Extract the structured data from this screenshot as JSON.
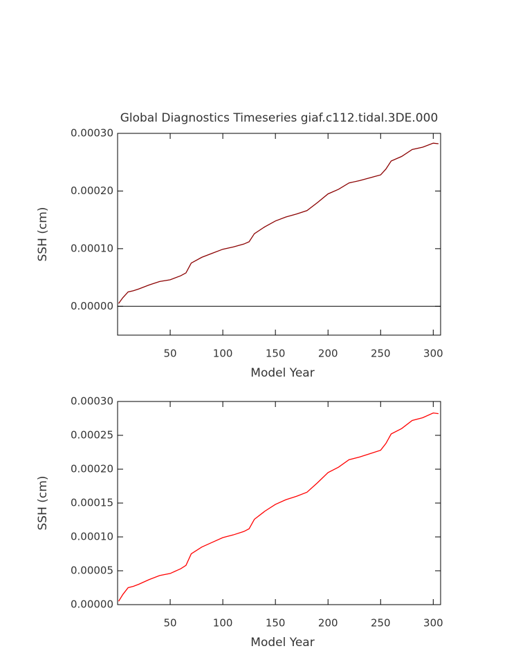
{
  "chart_data": [
    {
      "type": "line",
      "title": "Global Diagnostics Timeseries giaf.c112.tidal.3DE.000",
      "x_label": "Model Year",
      "y_label": "SSH (cm)",
      "x": [
        1,
        5,
        10,
        15,
        20,
        30,
        40,
        50,
        60,
        65,
        70,
        80,
        90,
        100,
        110,
        120,
        125,
        130,
        140,
        150,
        160,
        170,
        180,
        190,
        200,
        210,
        220,
        230,
        240,
        250,
        255,
        260,
        270,
        280,
        290,
        300,
        305
      ],
      "values": [
        5e-06,
        1.5e-05,
        2.5e-05,
        2.7e-05,
        3e-05,
        3.7e-05,
        4.3e-05,
        4.6e-05,
        5.3e-05,
        5.8e-05,
        7.5e-05,
        8.5e-05,
        9.2e-05,
        9.9e-05,
        0.000103,
        0.000108,
        0.000112,
        0.000126,
        0.000138,
        0.000148,
        0.000155,
        0.00016,
        0.000166,
        0.00018,
        0.000195,
        0.000203,
        0.000214,
        0.000218,
        0.000223,
        0.000228,
        0.000238,
        0.000252,
        0.00026,
        0.000272,
        0.000276,
        0.000283,
        0.000282
      ],
      "color": "#8b0000",
      "xlim": [
        0,
        307
      ],
      "xticks": [
        50,
        100,
        150,
        200,
        250,
        300
      ],
      "ylim": [
        -5e-05,
        0.0003
      ],
      "yticks": [
        {
          "value": 0,
          "label": "0.00000"
        },
        {
          "value": 0.0001,
          "label": "0.00010"
        },
        {
          "value": 0.0002,
          "label": "0.00020"
        },
        {
          "value": 0.0003,
          "label": "0.00030"
        }
      ],
      "hline": 0
    },
    {
      "type": "line",
      "x_label": "Model Year",
      "y_label": "SSH (cm)",
      "x": [
        1,
        5,
        10,
        15,
        20,
        30,
        40,
        50,
        60,
        65,
        70,
        80,
        90,
        100,
        110,
        120,
        125,
        130,
        140,
        150,
        160,
        170,
        180,
        190,
        200,
        210,
        220,
        230,
        240,
        250,
        255,
        260,
        270,
        280,
        290,
        300,
        305
      ],
      "values": [
        5e-06,
        1.5e-05,
        2.5e-05,
        2.7e-05,
        3e-05,
        3.7e-05,
        4.3e-05,
        4.6e-05,
        5.3e-05,
        5.8e-05,
        7.5e-05,
        8.5e-05,
        9.2e-05,
        9.9e-05,
        0.000103,
        0.000108,
        0.000112,
        0.000126,
        0.000138,
        0.000148,
        0.000155,
        0.00016,
        0.000166,
        0.00018,
        0.000195,
        0.000203,
        0.000214,
        0.000218,
        0.000223,
        0.000228,
        0.000238,
        0.000252,
        0.00026,
        0.000272,
        0.000276,
        0.000283,
        0.000282
      ],
      "color": "#ff0000",
      "xlim": [
        0,
        307
      ],
      "xticks": [
        50,
        100,
        150,
        200,
        250,
        300
      ],
      "ylim": [
        0,
        0.0003
      ],
      "yticks": [
        {
          "value": 0,
          "label": "0.00000"
        },
        {
          "value": 5e-05,
          "label": "0.00005"
        },
        {
          "value": 0.0001,
          "label": "0.00010"
        },
        {
          "value": 0.00015,
          "label": "0.00015"
        },
        {
          "value": 0.0002,
          "label": "0.00020"
        },
        {
          "value": 0.00025,
          "label": "0.00025"
        },
        {
          "value": 0.0003,
          "label": "0.00030"
        }
      ]
    }
  ]
}
